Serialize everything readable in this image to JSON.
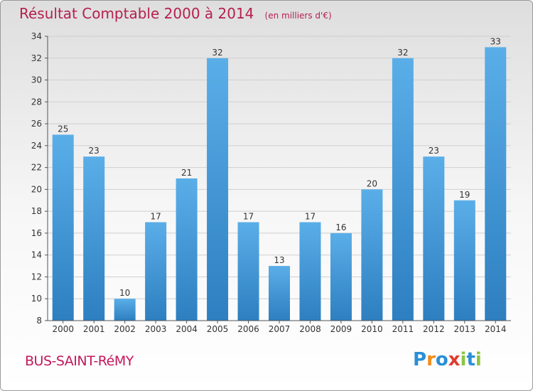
{
  "title": "Résultat Comptable 2000 à 2014",
  "unit": "(en milliers d'€)",
  "commune": "BUS-SAINT-RéMY",
  "logo": {
    "text": "Proxiti",
    "letters": [
      "P",
      "r",
      "o",
      "x",
      "i",
      "t",
      "i"
    ],
    "colors": [
      "#2a8fd6",
      "#f28c1a",
      "#2a8fd6",
      "#e13b2f",
      "#8cc63f",
      "#2a8fd6",
      "#8cc63f"
    ]
  },
  "colors": {
    "title": "#b5204f",
    "bar_top": "#5aaee8",
    "bar_bottom": "#2d7fc0",
    "grid": "#cfcfcf"
  },
  "chart_data": {
    "type": "bar",
    "categories": [
      "2000",
      "2001",
      "2002",
      "2003",
      "2004",
      "2005",
      "2006",
      "2007",
      "2008",
      "2009",
      "2010",
      "2011",
      "2012",
      "2013",
      "2014"
    ],
    "values": [
      25,
      23,
      10,
      17,
      21,
      32,
      17,
      13,
      17,
      16,
      20,
      32,
      23,
      19,
      33
    ],
    "ylim": [
      8,
      34
    ],
    "yticks": [
      8,
      10,
      12,
      14,
      16,
      18,
      20,
      22,
      24,
      26,
      28,
      30,
      32,
      34
    ],
    "grid": true
  }
}
